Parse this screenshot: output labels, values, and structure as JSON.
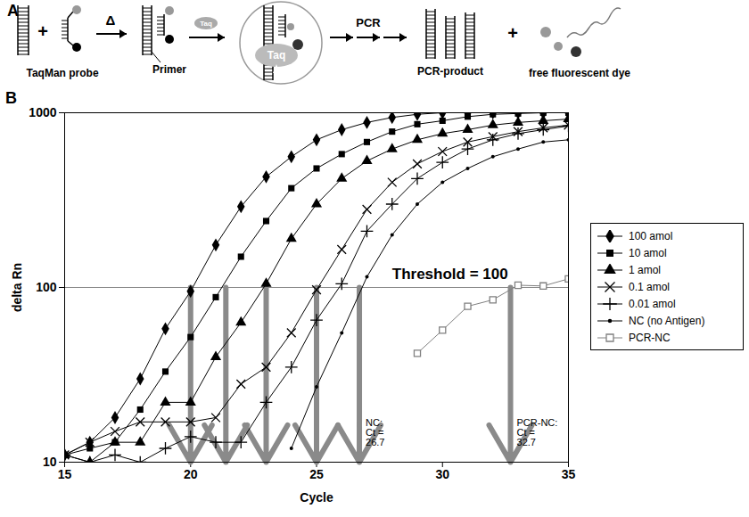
{
  "diagram": {
    "letter": "A",
    "labels": {
      "plus": "+",
      "probe": "TaqMan probe",
      "heat": "Δ",
      "primer": "Primer",
      "enzyme": "Taq",
      "pcr": "PCR",
      "product": "PCR-product",
      "dye": "free fluorescent dye"
    }
  },
  "chart_data": {
    "type": "line",
    "title": "B",
    "xlabel": "Cycle",
    "ylabel": "delta Rn",
    "x": [
      15,
      16,
      17,
      18,
      19,
      20,
      21,
      22,
      23,
      24,
      25,
      26,
      27,
      28,
      29,
      30,
      31,
      32,
      33,
      34,
      35
    ],
    "xlim": [
      15,
      35
    ],
    "xticks": [
      15,
      20,
      25,
      30,
      35
    ],
    "ylim": [
      10,
      1000
    ],
    "yticks": [
      10,
      100,
      1000
    ],
    "log": "y",
    "grid": false,
    "legend": "right",
    "series": [
      {
        "name": "100 amol",
        "color": "#000000",
        "marker": "diamond",
        "values": [
          11,
          13,
          18,
          30,
          58,
          95,
          175,
          290,
          430,
          560,
          700,
          800,
          880,
          940,
          980,
          1000,
          1000,
          1000,
          1000,
          1000,
          1000
        ]
      },
      {
        "name": "10 amol",
        "color": "#000000",
        "marker": "square",
        "values": [
          11,
          12,
          13,
          20,
          33,
          52,
          88,
          150,
          240,
          370,
          480,
          580,
          680,
          780,
          860,
          900,
          950,
          980,
          990,
          1000,
          1000
        ]
      },
      {
        "name": "1 amol",
        "color": "#000000",
        "marker": "triangle",
        "values": [
          11,
          10,
          13,
          13,
          22,
          22,
          40,
          63,
          105,
          190,
          300,
          420,
          530,
          620,
          700,
          760,
          800,
          850,
          880,
          900,
          920
        ]
      },
      {
        "name": "0.1 amol",
        "color": "#000000",
        "marker": "times",
        "values": [
          11,
          13,
          15,
          17,
          17,
          17,
          18,
          28,
          35,
          55,
          97,
          165,
          280,
          400,
          510,
          600,
          680,
          730,
          780,
          820,
          850
        ]
      },
      {
        "name": "0.01 amol",
        "color": "#000000",
        "marker": "plus",
        "values": [
          11,
          10,
          11,
          10,
          12,
          14,
          13,
          13,
          22,
          35,
          65,
          105,
          210,
          300,
          420,
          520,
          620,
          700,
          760,
          800,
          840
        ]
      },
      {
        "name": "NC (no Antigen)",
        "color": "#000000",
        "marker": "dot",
        "values": [
          null,
          null,
          null,
          null,
          null,
          null,
          null,
          null,
          null,
          12,
          27,
          55,
          115,
          200,
          300,
          400,
          480,
          560,
          620,
          680,
          700
        ]
      },
      {
        "name": "PCR-NC",
        "color": "#808080",
        "marker": "open-square",
        "values": [
          null,
          null,
          null,
          null,
          null,
          null,
          null,
          null,
          null,
          null,
          null,
          null,
          null,
          null,
          42,
          57,
          78,
          85,
          103,
          102,
          112
        ]
      }
    ],
    "annotations": [
      {
        "text": "Threshold = 100",
        "y": 100
      }
    ],
    "ct_markers": [
      {
        "x": 20
      },
      {
        "x": 21.4
      },
      {
        "x": 23
      },
      {
        "x": 25
      },
      {
        "x": 26.7,
        "text": "NC:\nCt =\n26.7"
      },
      {
        "x": 32.7,
        "text": "PCR-NC:\nCt =\n32.7"
      }
    ]
  }
}
